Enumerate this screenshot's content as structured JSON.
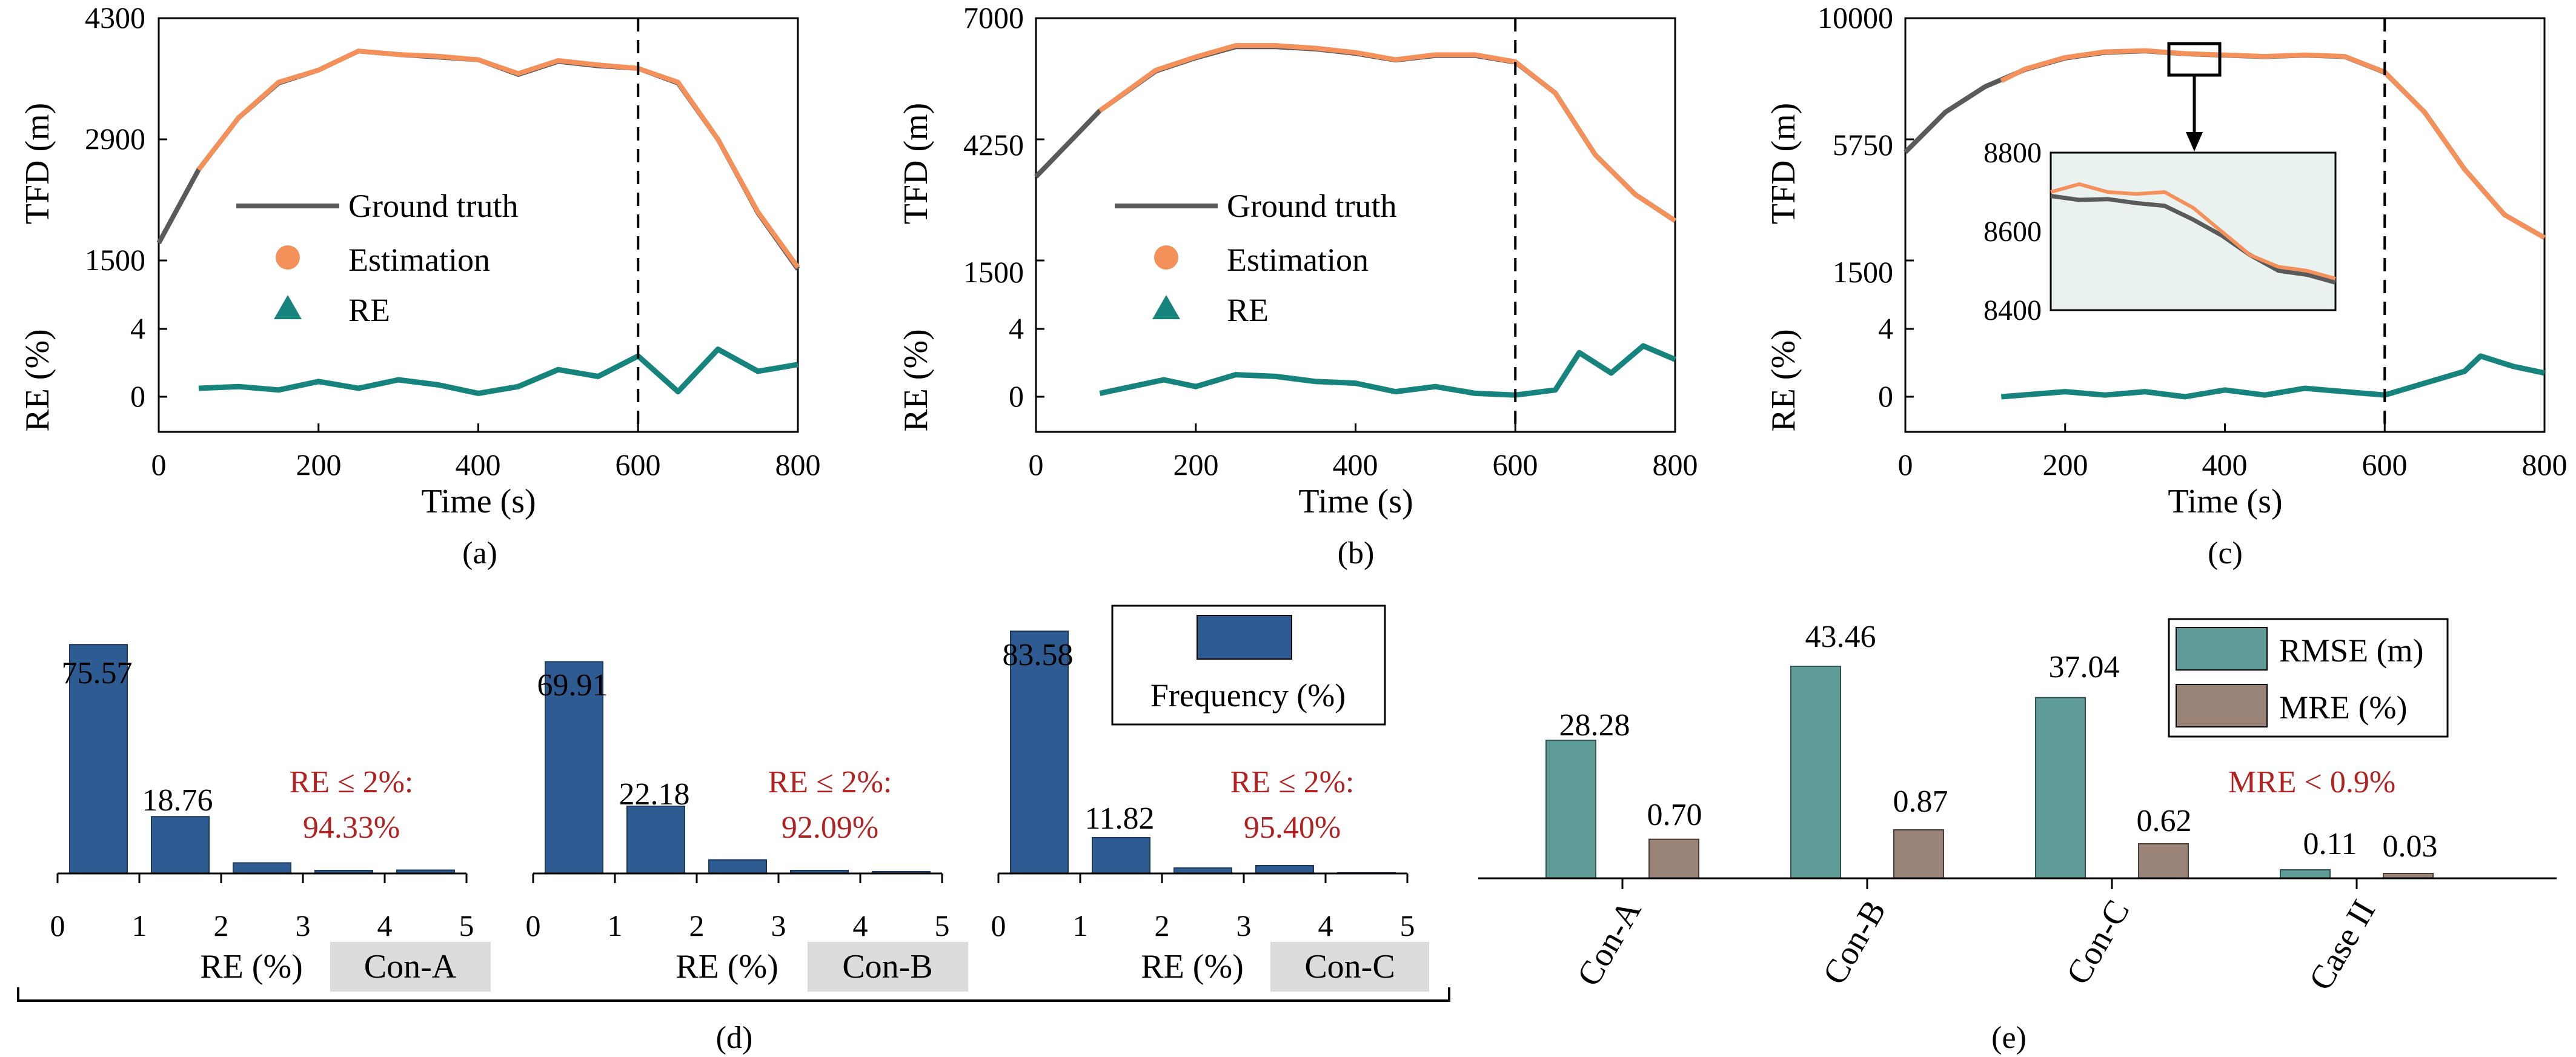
{
  "chart_data": [
    {
      "id": "a",
      "type": "line",
      "panel_label": "(a)",
      "xlabel": "Time (s)",
      "xlim": [
        0,
        800
      ],
      "xticks": [
        "0",
        "200",
        "400",
        "600",
        "800"
      ],
      "top_ylabel": "TFD (m)",
      "top_ylim": [
        1500,
        4300
      ],
      "top_yticks": [
        "1500",
        "2900",
        "4300"
      ],
      "bottom_ylabel": "RE (%)",
      "bottom_ylim": [
        -2,
        6
      ],
      "bottom_yticks": [
        "0",
        "4"
      ],
      "vline_x": 600,
      "legend": {
        "items": [
          "Ground truth",
          "Estimation",
          "RE"
        ],
        "placement": "center-left"
      },
      "series": [
        {
          "name": "Ground truth",
          "x": [
            0,
            50,
            100,
            150,
            200,
            250,
            300,
            350,
            400,
            450,
            500,
            550,
            600,
            650,
            700,
            750,
            800
          ],
          "y": [
            1700,
            2550,
            3150,
            3550,
            3700,
            3920,
            3880,
            3850,
            3820,
            3650,
            3800,
            3750,
            3720,
            3550,
            2900,
            2050,
            1400
          ]
        },
        {
          "name": "Estimation",
          "x": [
            50,
            100,
            150,
            200,
            250,
            300,
            350,
            400,
            450,
            500,
            550,
            600,
            650,
            700,
            750,
            800
          ],
          "y": [
            2550,
            3150,
            3560,
            3700,
            3920,
            3880,
            3860,
            3820,
            3660,
            3810,
            3760,
            3720,
            3560,
            2900,
            2060,
            1420
          ]
        },
        {
          "name": "RE",
          "x": [
            50,
            100,
            150,
            200,
            250,
            300,
            350,
            400,
            450,
            500,
            550,
            600,
            650,
            700,
            750,
            800
          ],
          "y": [
            0.5,
            0.6,
            0.4,
            0.9,
            0.5,
            1.0,
            0.7,
            0.2,
            0.6,
            1.6,
            1.2,
            2.4,
            0.3,
            2.8,
            1.5,
            1.9
          ]
        }
      ]
    },
    {
      "id": "b",
      "type": "line",
      "panel_label": "(b)",
      "xlabel": "Time (s)",
      "xlim": [
        0,
        800
      ],
      "xticks": [
        "0",
        "200",
        "400",
        "600",
        "800"
      ],
      "top_ylabel": "TFD (m)",
      "top_ylim": [
        1500,
        7000
      ],
      "top_yticks": [
        "1500",
        "4250",
        "7000"
      ],
      "bottom_ylabel": "RE (%)",
      "bottom_ylim": [
        -2,
        6
      ],
      "bottom_yticks": [
        "0",
        "4"
      ],
      "vline_x": 600,
      "legend": {
        "items": [
          "Ground truth",
          "Estimation",
          "RE"
        ],
        "placement": "center-left"
      },
      "series": [
        {
          "name": "Ground truth",
          "x": [
            0,
            80,
            150,
            200,
            250,
            300,
            350,
            400,
            450,
            500,
            550,
            600,
            650,
            700,
            750,
            800
          ],
          "y": [
            3400,
            4900,
            5800,
            6100,
            6350,
            6350,
            6300,
            6200,
            6050,
            6150,
            6150,
            6000,
            5300,
            3900,
            3000,
            2400
          ]
        },
        {
          "name": "Estimation",
          "x": [
            80,
            150,
            200,
            250,
            300,
            350,
            400,
            450,
            500,
            550,
            600,
            650,
            700,
            750,
            800
          ],
          "y": [
            4900,
            5820,
            6120,
            6380,
            6380,
            6320,
            6220,
            6060,
            6170,
            6170,
            6010,
            5300,
            3900,
            3000,
            2400
          ]
        },
        {
          "name": "RE",
          "x": [
            80,
            120,
            160,
            200,
            250,
            300,
            350,
            400,
            450,
            500,
            550,
            600,
            650,
            680,
            720,
            760,
            800
          ],
          "y": [
            0.2,
            0.6,
            1.0,
            0.6,
            1.3,
            1.2,
            0.9,
            0.8,
            0.3,
            0.6,
            0.2,
            0.1,
            0.4,
            2.6,
            1.4,
            3.0,
            2.2
          ]
        }
      ]
    },
    {
      "id": "c",
      "type": "line",
      "panel_label": "(c)",
      "xlabel": "Time (s)",
      "xlim": [
        0,
        800
      ],
      "xticks": [
        "0",
        "200",
        "400",
        "600",
        "800"
      ],
      "top_ylabel": "TFD (m)",
      "top_ylim": [
        1500,
        10000
      ],
      "top_yticks": [
        "1500",
        "5750",
        "10000"
      ],
      "bottom_ylabel": "RE (%)",
      "bottom_ylim": [
        -2,
        6
      ],
      "bottom_yticks": [
        "0",
        "4"
      ],
      "vline_x": 600,
      "inset": {
        "ylim": [
          8400,
          8800
        ],
        "yticks": [
          "8400",
          "8600",
          "8800"
        ],
        "x_window": [
          340,
          380
        ]
      },
      "series": [
        {
          "name": "Ground truth",
          "x": [
            0,
            50,
            100,
            150,
            200,
            250,
            300,
            350,
            400,
            450,
            500,
            550,
            600,
            650,
            700,
            750,
            800
          ],
          "y": [
            5300,
            6700,
            7600,
            8200,
            8600,
            8800,
            8850,
            8750,
            8700,
            8650,
            8700,
            8650,
            8100,
            6700,
            4700,
            3100,
            2300
          ]
        },
        {
          "name": "Estimation",
          "x": [
            120,
            150,
            200,
            250,
            300,
            350,
            400,
            450,
            500,
            550,
            600,
            650,
            700,
            750,
            800
          ],
          "y": [
            7800,
            8220,
            8620,
            8820,
            8860,
            8760,
            8710,
            8660,
            8710,
            8660,
            8110,
            6700,
            4700,
            3100,
            2300
          ]
        },
        {
          "name": "RE",
          "x": [
            120,
            200,
            250,
            300,
            350,
            400,
            450,
            500,
            550,
            600,
            650,
            700,
            720,
            760,
            800
          ],
          "y": [
            0.0,
            0.3,
            0.1,
            0.3,
            0.0,
            0.4,
            0.1,
            0.5,
            0.3,
            0.1,
            0.8,
            1.5,
            2.4,
            1.8,
            1.4
          ]
        },
        {
          "name": "Inset ground truth",
          "x": [
            0,
            10,
            20,
            30,
            40,
            50,
            60,
            70,
            80,
            90,
            100
          ],
          "y": [
            8690,
            8680,
            8682,
            8672,
            8665,
            8630,
            8590,
            8540,
            8500,
            8490,
            8470
          ]
        },
        {
          "name": "Inset estimation",
          "x": [
            0,
            10,
            20,
            30,
            40,
            50,
            60,
            70,
            80,
            90,
            100
          ],
          "y": [
            8700,
            8720,
            8700,
            8695,
            8700,
            8660,
            8600,
            8540,
            8510,
            8500,
            8480
          ]
        }
      ]
    },
    {
      "id": "d",
      "type": "bar",
      "panel_label": "(d)",
      "xlabel": "RE (%)",
      "legend": {
        "items": [
          "Frequency (%)"
        ],
        "placement": "top-right"
      },
      "xticks": [
        "0",
        "1",
        "2",
        "3",
        "4",
        "5"
      ],
      "subplots": [
        {
          "name": "Con-A",
          "values": [
            75.57,
            18.76,
            3.5,
            1.0,
            1.1
          ],
          "labels": [
            "75.57",
            "18.76",
            "",
            "",
            ""
          ],
          "note_line1": "RE ≤ 2%:",
          "note_line2": "94.33%"
        },
        {
          "name": "Con-B",
          "values": [
            69.91,
            22.18,
            4.5,
            1.0,
            0.6
          ],
          "labels": [
            "69.91",
            "22.18",
            "",
            "",
            ""
          ],
          "note_line1": "RE ≤ 2%:",
          "note_line2": "92.09%"
        },
        {
          "name": "Con-C",
          "values": [
            83.58,
            11.82,
            1.8,
            2.6,
            0.2
          ],
          "labels": [
            "83.58",
            "11.82",
            "",
            "",
            ""
          ],
          "note_line1": "RE ≤ 2%:",
          "note_line2": "95.40%"
        }
      ],
      "ylim": [
        0,
        100
      ]
    },
    {
      "id": "e",
      "type": "bar",
      "panel_label": "(e)",
      "categories": [
        "Con-A",
        "Con-B",
        "Con-C",
        "Case II"
      ],
      "series": [
        {
          "name": "RMSE (m)",
          "values": [
            28.28,
            43.46,
            37.04,
            0.11
          ],
          "labels": [
            "28.28",
            "43.46",
            "37.04",
            "0.11"
          ]
        },
        {
          "name": "MRE (%)",
          "values": [
            0.7,
            0.87,
            0.62,
            0.03
          ],
          "labels": [
            "0.70",
            "0.87",
            "0.62",
            "0.03"
          ]
        }
      ],
      "note": "MRE < 0.9%",
      "legend": {
        "items": [
          "RMSE (m)",
          "MRE (%)"
        ],
        "placement": "top-right"
      }
    }
  ],
  "colors": {
    "ground_truth": "#5a5a5a",
    "estimation": "#f4915a",
    "re": "#16847c",
    "freq_bar": "#2e5c92",
    "rmse_bar": "#5f9c98",
    "mre_bar": "#9a8377",
    "note_red": "#b22222",
    "inset_bg": "#eaf2ef",
    "tag_bg": "#dcdcdc"
  }
}
